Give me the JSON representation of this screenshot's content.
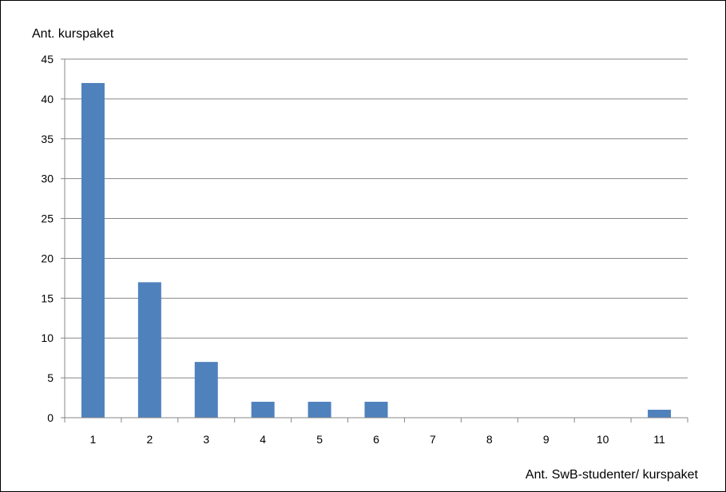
{
  "chart_data": {
    "type": "bar",
    "title": "",
    "xlabel": "Ant. SwB-studenter/ kurspaket",
    "ylabel": "Ant. kurspaket",
    "categories": [
      "1",
      "2",
      "3",
      "4",
      "5",
      "6",
      "7",
      "8",
      "9",
      "10",
      "11"
    ],
    "values": [
      42,
      17,
      7,
      2,
      2,
      2,
      0,
      0,
      0,
      0,
      1
    ],
    "ylim": [
      0,
      45
    ],
    "yticks": [
      "0",
      "5",
      "10",
      "15",
      "20",
      "25",
      "30",
      "35",
      "40",
      "45"
    ],
    "grid": true,
    "legend": "none",
    "bar_color": "#4F81BD",
    "grid_color": "#878787"
  }
}
